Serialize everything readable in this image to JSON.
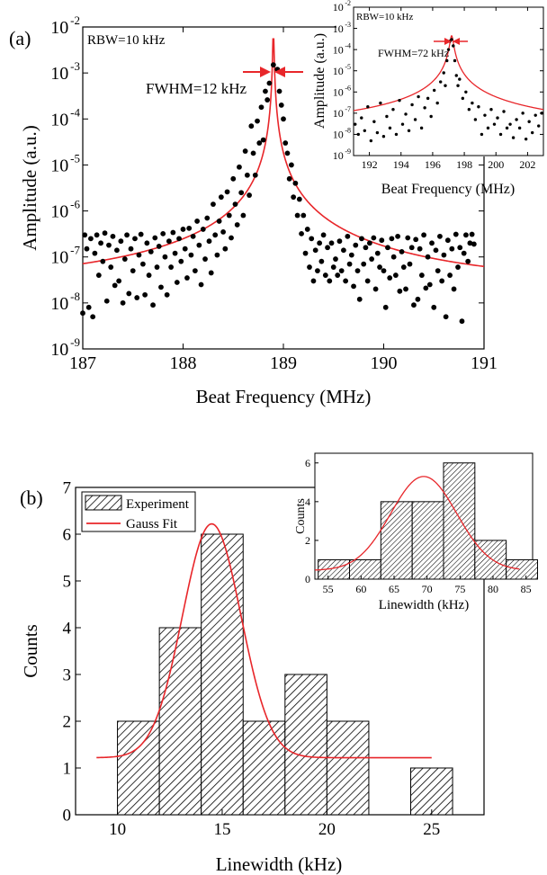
{
  "chart_data": [
    {
      "id": "a-main",
      "type": "scatter",
      "panel_label": "(a)",
      "xlabel": "Beat Frequency (MHz)",
      "ylabel": "Amplitude (a.u.)",
      "xlim": [
        187,
        191
      ],
      "ylim": [
        1e-09,
        0.01
      ],
      "yscale": "log",
      "x_ticks": [
        187,
        188,
        189,
        190,
        191
      ],
      "y_ticks": [
        {
          "value": 1e-09,
          "base": "10",
          "exp": "-9"
        },
        {
          "value": 1e-08,
          "base": "10",
          "exp": "-8"
        },
        {
          "value": 1e-07,
          "base": "10",
          "exp": "-7"
        },
        {
          "value": 1e-06,
          "base": "10",
          "exp": "-6"
        },
        {
          "value": 1e-05,
          "base": "10",
          "exp": "-5"
        },
        {
          "value": 0.0001,
          "base": "10",
          "exp": "-4"
        },
        {
          "value": 0.001,
          "base": "10",
          "exp": "-3"
        },
        {
          "value": 0.01,
          "base": "10",
          "exp": "-2"
        }
      ],
      "annotations": [
        "RBW=10 kHz",
        "FWHM=12 kHz"
      ],
      "fit": {
        "type": "lorentzian",
        "center": 188.9,
        "peak": 0.0105,
        "half_width": 0.0042,
        "baseline": 2e-08,
        "color": "#e8262a"
      },
      "series_color": "#000000",
      "points": [
        [
          187.0,
          6e-09
        ],
        [
          187.02,
          3e-07
        ],
        [
          187.04,
          1.5e-07
        ],
        [
          187.06,
          8e-09
        ],
        [
          187.08,
          2.5e-07
        ],
        [
          187.1,
          5e-09
        ],
        [
          187.12,
          1.2e-07
        ],
        [
          187.14,
          3e-07
        ],
        [
          187.16,
          4e-08
        ],
        [
          187.18,
          2e-07
        ],
        [
          187.2,
          8e-08
        ],
        [
          187.22,
          3.3e-07
        ],
        [
          187.24,
          1.1e-08
        ],
        [
          187.26,
          1.8e-07
        ],
        [
          187.28,
          6e-08
        ],
        [
          187.3,
          2.8e-07
        ],
        [
          187.32,
          2.4e-08
        ],
        [
          187.34,
          1.4e-07
        ],
        [
          187.36,
          3e-08
        ],
        [
          187.38,
          2.2e-07
        ],
        [
          187.4,
          1e-08
        ],
        [
          187.42,
          9e-08
        ],
        [
          187.44,
          3e-07
        ],
        [
          187.46,
          1.6e-08
        ],
        [
          187.48,
          1.5e-07
        ],
        [
          187.5,
          5e-08
        ],
        [
          187.52,
          2.5e-07
        ],
        [
          187.54,
          1.3e-08
        ],
        [
          187.56,
          1.1e-07
        ],
        [
          187.58,
          3.1e-07
        ],
        [
          187.6,
          7e-08
        ],
        [
          187.62,
          1.5e-08
        ],
        [
          187.64,
          2e-07
        ],
        [
          187.66,
          4e-08
        ],
        [
          187.68,
          1.3e-07
        ],
        [
          187.7,
          9e-09
        ],
        [
          187.72,
          2.6e-07
        ],
        [
          187.74,
          6e-08
        ],
        [
          187.76,
          1.7e-07
        ],
        [
          187.78,
          2.2e-08
        ],
        [
          187.8,
          3.2e-07
        ],
        [
          187.82,
          1e-07
        ],
        [
          187.84,
          1.5e-08
        ],
        [
          187.86,
          2.2e-07
        ],
        [
          187.88,
          6e-08
        ],
        [
          187.9,
          3.4e-07
        ],
        [
          187.92,
          1.2e-07
        ],
        [
          187.94,
          2.8e-08
        ],
        [
          187.96,
          2.5e-07
        ],
        [
          187.98,
          8e-08
        ],
        [
          188.0,
          4e-07
        ],
        [
          188.02,
          1.5e-07
        ],
        [
          188.04,
          3.5e-08
        ],
        [
          188.06,
          4.2e-07
        ],
        [
          188.08,
          1.1e-07
        ],
        [
          188.1,
          2.8e-07
        ],
        [
          188.12,
          5e-08
        ],
        [
          188.14,
          6e-07
        ],
        [
          188.16,
          1.8e-07
        ],
        [
          188.18,
          2.5e-08
        ],
        [
          188.2,
          4e-07
        ],
        [
          188.22,
          9e-08
        ],
        [
          188.24,
          7e-07
        ],
        [
          188.26,
          2.2e-07
        ],
        [
          188.28,
          4.5e-08
        ],
        [
          188.3,
          1.4e-06
        ],
        [
          188.32,
          3e-07
        ],
        [
          188.34,
          1.1e-07
        ],
        [
          188.36,
          6e-07
        ],
        [
          188.38,
          2e-06
        ],
        [
          188.4,
          3.5e-07
        ],
        [
          188.42,
          1.5e-07
        ],
        [
          188.44,
          2.6e-06
        ],
        [
          188.46,
          8e-07
        ],
        [
          188.48,
          2.6e-07
        ],
        [
          188.5,
          5e-06
        ],
        [
          188.52,
          1.4e-06
        ],
        [
          188.54,
          5e-07
        ],
        [
          188.56,
          9e-06
        ],
        [
          188.58,
          2.5e-06
        ],
        [
          188.6,
          8e-07
        ],
        [
          188.62,
          2e-05
        ],
        [
          188.64,
          6e-06
        ],
        [
          188.66,
          2.2e-06
        ],
        [
          188.68,
          7e-05
        ],
        [
          188.7,
          1.8e-05
        ],
        [
          188.72,
          6e-06
        ],
        [
          188.74,
          9e-05
        ],
        [
          188.76,
          3e-05
        ],
        [
          188.78,
          0.00018
        ],
        [
          188.8,
          3.5e-05
        ],
        [
          188.82,
          0.0004
        ],
        [
          188.84,
          0.00026
        ],
        [
          188.86,
          0.0006
        ],
        [
          188.9,
          0.0015
        ],
        [
          188.94,
          0.0012
        ],
        [
          188.96,
          0.0004
        ],
        [
          188.98,
          0.0002
        ],
        [
          189.0,
          0.0001
        ],
        [
          189.02,
          3e-05
        ],
        [
          189.04,
          1.8e-05
        ],
        [
          189.06,
          5e-06
        ],
        [
          189.08,
          1e-05
        ],
        [
          189.1,
          2e-06
        ],
        [
          189.12,
          4e-06
        ],
        [
          189.14,
          8e-07
        ],
        [
          189.16,
          1.8e-06
        ],
        [
          189.18,
          3.2e-07
        ],
        [
          189.2,
          8e-07
        ],
        [
          189.22,
          1.2e-07
        ],
        [
          189.24,
          4e-07
        ],
        [
          189.26,
          6e-08
        ],
        [
          189.28,
          2.5e-07
        ],
        [
          189.3,
          3e-08
        ],
        [
          189.32,
          1.4e-07
        ],
        [
          189.34,
          5e-08
        ],
        [
          189.36,
          2e-07
        ],
        [
          189.38,
          8e-08
        ],
        [
          189.4,
          3e-07
        ],
        [
          189.42,
          4e-08
        ],
        [
          189.44,
          1.6e-07
        ],
        [
          189.46,
          3e-08
        ],
        [
          189.48,
          2e-07
        ],
        [
          189.5,
          6e-08
        ],
        [
          189.52,
          9e-08
        ],
        [
          189.54,
          4e-08
        ],
        [
          189.56,
          2.2e-07
        ],
        [
          189.58,
          5e-08
        ],
        [
          189.6,
          1.4e-07
        ],
        [
          189.62,
          3e-08
        ],
        [
          189.64,
          2.8e-07
        ],
        [
          189.66,
          7e-08
        ],
        [
          189.68,
          1.1e-07
        ],
        [
          189.7,
          2.3e-08
        ],
        [
          189.72,
          1.8e-07
        ],
        [
          189.74,
          5e-08
        ],
        [
          189.76,
          1.2e-08
        ],
        [
          189.78,
          2.5e-07
        ],
        [
          189.8,
          7e-08
        ],
        [
          189.82,
          1.6e-07
        ],
        [
          189.84,
          3e-08
        ],
        [
          189.86,
          2e-07
        ],
        [
          189.88,
          9e-08
        ],
        [
          189.9,
          2.6e-07
        ],
        [
          189.92,
          2e-08
        ],
        [
          189.94,
          1.2e-07
        ],
        [
          189.96,
          6e-08
        ],
        [
          189.98,
          2.3e-07
        ],
        [
          190.0,
          5e-08
        ],
        [
          190.02,
          8e-09
        ],
        [
          190.04,
          1.6e-07
        ],
        [
          190.06,
          3.5e-08
        ],
        [
          190.08,
          2.5e-07
        ],
        [
          190.1,
          1e-07
        ],
        [
          190.12,
          4e-08
        ],
        [
          190.14,
          2.8e-07
        ],
        [
          190.16,
          1.8e-08
        ],
        [
          190.18,
          1.3e-07
        ],
        [
          190.2,
          6e-08
        ],
        [
          190.22,
          2e-08
        ],
        [
          190.24,
          2.6e-07
        ],
        [
          190.26,
          7e-08
        ],
        [
          190.28,
          1.6e-07
        ],
        [
          190.3,
          9e-09
        ],
        [
          190.32,
          2.4e-07
        ],
        [
          190.34,
          1.2e-08
        ],
        [
          190.36,
          1.5e-07
        ],
        [
          190.38,
          4e-08
        ],
        [
          190.4,
          3e-07
        ],
        [
          190.42,
          2.1e-08
        ],
        [
          190.44,
          1e-07
        ],
        [
          190.46,
          2.5e-08
        ],
        [
          190.48,
          2e-07
        ],
        [
          190.5,
          8e-09
        ],
        [
          190.52,
          1.4e-07
        ],
        [
          190.54,
          5e-08
        ],
        [
          190.56,
          2.8e-07
        ],
        [
          190.58,
          3e-08
        ],
        [
          190.6,
          1.1e-07
        ],
        [
          190.62,
          5e-09
        ],
        [
          190.64,
          2.3e-07
        ],
        [
          190.66,
          4e-08
        ],
        [
          190.68,
          1.5e-07
        ],
        [
          190.7,
          2e-08
        ],
        [
          190.72,
          3.1e-07
        ],
        [
          190.74,
          6e-08
        ],
        [
          190.76,
          1.6e-07
        ],
        [
          190.78,
          4e-09
        ],
        [
          190.8,
          1.2e-07
        ],
        [
          190.82,
          3e-07
        ],
        [
          190.84,
          8e-08
        ],
        [
          190.86,
          2e-07
        ],
        [
          190.88,
          3.1e-07
        ],
        [
          190.9,
          1.9e-07
        ]
      ]
    },
    {
      "id": "a-inset",
      "type": "scatter",
      "xlabel": "Beat Frequency (MHz)",
      "ylabel": "Amplitude (a.u.)",
      "xlim": [
        191,
        203
      ],
      "ylim": [
        1e-09,
        0.01
      ],
      "yscale": "log",
      "x_ticks": [
        192,
        194,
        196,
        198,
        200,
        202
      ],
      "y_ticks": [
        {
          "value": 1e-09,
          "base": "10",
          "exp": "-9"
        },
        {
          "value": 1e-08,
          "base": "10",
          "exp": "-8"
        },
        {
          "value": 1e-07,
          "base": "10",
          "exp": "-7"
        },
        {
          "value": 1e-06,
          "base": "10",
          "exp": "-6"
        },
        {
          "value": 1e-05,
          "base": "10",
          "exp": "-5"
        },
        {
          "value": 0.0001,
          "base": "10",
          "exp": "-4"
        },
        {
          "value": 0.001,
          "base": "10",
          "exp": "-3"
        },
        {
          "value": 0.01,
          "base": "10",
          "exp": "-2"
        }
      ],
      "annotations": [
        "RBW=10 kHz",
        "FWHM=72 kHz"
      ],
      "fit": {
        "type": "lorentzian",
        "center": 197.2,
        "peak": 0.00045,
        "half_width": 0.1,
        "baseline": 1.5e-08,
        "color": "#e8262a"
      },
      "series_color": "#000000",
      "points": [
        [
          191.1,
          3e-08
        ],
        [
          191.3,
          1e-08
        ],
        [
          191.5,
          6e-08
        ],
        [
          191.7,
          1.5e-08
        ],
        [
          191.9,
          2e-07
        ],
        [
          192.1,
          5e-09
        ],
        [
          192.3,
          4e-08
        ],
        [
          192.5,
          1.2e-08
        ],
        [
          192.7,
          3e-07
        ],
        [
          192.9,
          8e-09
        ],
        [
          193.1,
          7e-08
        ],
        [
          193.3,
          2e-08
        ],
        [
          193.5,
          1.5e-07
        ],
        [
          193.7,
          1e-08
        ],
        [
          193.9,
          4e-07
        ],
        [
          194.1,
          3e-08
        ],
        [
          194.3,
          9e-08
        ],
        [
          194.5,
          1.5e-08
        ],
        [
          194.7,
          2.5e-07
        ],
        [
          194.9,
          5e-08
        ],
        [
          195.1,
          6e-07
        ],
        [
          195.3,
          2e-08
        ],
        [
          195.5,
          1.8e-07
        ],
        [
          195.7,
          5e-07
        ],
        [
          195.9,
          7e-08
        ],
        [
          196.1,
          1.2e-06
        ],
        [
          196.3,
          3e-07
        ],
        [
          196.5,
          3e-06
        ],
        [
          196.7,
          8e-06
        ],
        [
          196.8,
          2e-06
        ],
        [
          196.9,
          3e-05
        ],
        [
          197.0,
          0.0001
        ],
        [
          197.1,
          0.00025
        ],
        [
          197.2,
          0.0003
        ],
        [
          197.3,
          0.00015
        ],
        [
          197.4,
          3e-05
        ],
        [
          197.5,
          6e-06
        ],
        [
          197.6,
          2e-06
        ],
        [
          197.7,
          4e-06
        ],
        [
          197.9,
          5e-07
        ],
        [
          198.1,
          1e-06
        ],
        [
          198.3,
          1.5e-07
        ],
        [
          198.5,
          3e-07
        ],
        [
          198.7,
          5e-08
        ],
        [
          198.9,
          2e-07
        ],
        [
          199.1,
          1e-08
        ],
        [
          199.3,
          8e-08
        ],
        [
          199.5,
          2e-08
        ],
        [
          199.7,
          1.5e-07
        ],
        [
          199.9,
          3e-08
        ],
        [
          200.1,
          6e-08
        ],
        [
          200.3,
          1e-08
        ],
        [
          200.5,
          1.2e-07
        ],
        [
          200.7,
          2e-08
        ],
        [
          200.9,
          3e-08
        ],
        [
          201.1,
          7e-09
        ],
        [
          201.3,
          5e-08
        ],
        [
          201.5,
          2e-08
        ],
        [
          201.7,
          1e-07
        ],
        [
          201.9,
          6e-09
        ],
        [
          202.1,
          4e-08
        ],
        [
          202.3,
          1.2e-08
        ],
        [
          202.5,
          8e-08
        ],
        [
          202.7,
          2.5e-08
        ],
        [
          202.9,
          1e-07
        ]
      ]
    },
    {
      "id": "b-main",
      "type": "bar",
      "panel_label": "(b)",
      "xlabel": "Linewidth (kHz)",
      "ylabel": "Counts",
      "xlim": [
        8,
        27.5
      ],
      "ylim": [
        0,
        7
      ],
      "x_ticks": [
        10,
        15,
        20,
        25
      ],
      "y_ticks": [
        0,
        1,
        2,
        3,
        4,
        5,
        6,
        7
      ],
      "bin_width": 2,
      "bins": [
        [
          10,
          2
        ],
        [
          12,
          4
        ],
        [
          14,
          6
        ],
        [
          16,
          2
        ],
        [
          18,
          3
        ],
        [
          20,
          2
        ],
        [
          24,
          1
        ]
      ],
      "legend": {
        "position": "top-left",
        "entries": [
          "Experiment",
          "Gauss Fit"
        ]
      },
      "fit": {
        "type": "gauss",
        "y0": 1.22,
        "amplitude": 5.0,
        "center": 14.5,
        "sigma": 1.4,
        "x_range": [
          9,
          25
        ],
        "color": "#e8262a"
      }
    },
    {
      "id": "b-inset",
      "type": "bar",
      "xlabel": "Linewidth (kHz)",
      "ylabel": "Counts",
      "xlim": [
        53,
        86
      ],
      "ylim": [
        0,
        6.5
      ],
      "x_ticks": [
        55,
        60,
        65,
        70,
        75,
        80,
        85
      ],
      "y_ticks": [
        0,
        2,
        4,
        6
      ],
      "bin_width": 4.75,
      "bins": [
        [
          53.5,
          1
        ],
        [
          58.25,
          1
        ],
        [
          63,
          4
        ],
        [
          67.75,
          4
        ],
        [
          72.5,
          6
        ],
        [
          77.25,
          2
        ],
        [
          82,
          1
        ]
      ],
      "fit": {
        "type": "gauss",
        "y0": 0.45,
        "amplitude": 4.85,
        "center": 69.5,
        "sigma": 5.0,
        "x_range": [
          53,
          84
        ],
        "color": "#e8262a"
      }
    }
  ]
}
